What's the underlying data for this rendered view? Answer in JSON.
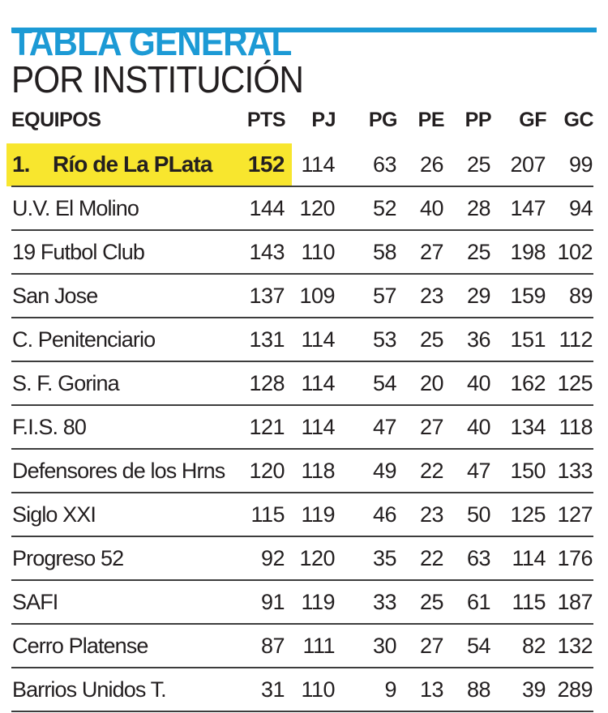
{
  "colors": {
    "accent_blue": "#1C9AD5",
    "highlight_yellow": "#F8E62E",
    "text_black": "#231F20",
    "separator_gray": "#3D3D3D"
  },
  "header": {
    "title_line1": "TABLA GENERAL",
    "title_line2": "POR INSTITUCIÓN"
  },
  "table": {
    "columns": [
      "EQUIPOS",
      "PTS",
      "PJ",
      "PG",
      "PE",
      "PP",
      "GF",
      "GC"
    ],
    "rows": [
      {
        "rank": "1.",
        "team": "Río de La PLata",
        "pts": "152",
        "pj": "114",
        "pg": "63",
        "pe": "26",
        "pp": "25",
        "gf": "207",
        "gc": "99",
        "highlighted": true
      },
      {
        "team": "U.V. El Molino",
        "pts": "144",
        "pj": "120",
        "pg": "52",
        "pe": "40",
        "pp": "28",
        "gf": "147",
        "gc": "94"
      },
      {
        "team": "19 Futbol Club",
        "pts": "143",
        "pj": "110",
        "pg": "58",
        "pe": "27",
        "pp": "25",
        "gf": "198",
        "gc": "102"
      },
      {
        "team": "San Jose",
        "pts": "137",
        "pj": "109",
        "pg": "57",
        "pe": "23",
        "pp": "29",
        "gf": "159",
        "gc": "89"
      },
      {
        "team": "C. Penitenciario",
        "pts": "131",
        "pj": "114",
        "pg": "53",
        "pe": "25",
        "pp": "36",
        "gf": "151",
        "gc": "112"
      },
      {
        "team": "S. F. Gorina",
        "pts": "128",
        "pj": "114",
        "pg": "54",
        "pe": "20",
        "pp": "40",
        "gf": "162",
        "gc": "125"
      },
      {
        "team": "F.I.S. 80",
        "pts": "121",
        "pj": "114",
        "pg": "47",
        "pe": "27",
        "pp": "40",
        "gf": "134",
        "gc": "118"
      },
      {
        "team": "Defensores de los Hrns",
        "pts": "120",
        "pj": "118",
        "pg": "49",
        "pe": "22",
        "pp": "47",
        "gf": "150",
        "gc": "133"
      },
      {
        "team": "Siglo XXI",
        "pts": "115",
        "pj": "119",
        "pg": "46",
        "pe": "23",
        "pp": "50",
        "gf": "125",
        "gc": "127"
      },
      {
        "team": "Progreso 52",
        "pts": "92",
        "pj": "120",
        "pg": "35",
        "pe": "22",
        "pp": "63",
        "gf": "114",
        "gc": "176"
      },
      {
        "team": "SAFI",
        "pts": "91",
        "pj": "119",
        "pg": "33",
        "pe": "25",
        "pp": "61",
        "gf": "115",
        "gc": "187"
      },
      {
        "team": "Cerro Platense",
        "pts": "87",
        "pj": "111",
        "pg": "30",
        "pe": "27",
        "pp": "54",
        "gf": "82",
        "gc": "132"
      },
      {
        "team": "Barrios Unidos T.",
        "pts": "31",
        "pj": "110",
        "pg": "9",
        "pe": "13",
        "pp": "88",
        "gf": "39",
        "gc": "289"
      }
    ]
  },
  "chart_data": {
    "type": "table",
    "title": "TABLA GENERAL POR INSTITUCIÓN",
    "columns": [
      "EQUIPOS",
      "PTS",
      "PJ",
      "PG",
      "PE",
      "PP",
      "GF",
      "GC"
    ],
    "rows": [
      [
        "Río de La PLata",
        152,
        114,
        63,
        26,
        25,
        207,
        99
      ],
      [
        "U.V. El Molino",
        144,
        120,
        52,
        40,
        28,
        147,
        94
      ],
      [
        "19 Futbol Club",
        143,
        110,
        58,
        27,
        25,
        198,
        102
      ],
      [
        "San Jose",
        137,
        109,
        57,
        23,
        29,
        159,
        89
      ],
      [
        "C. Penitenciario",
        131,
        114,
        53,
        25,
        36,
        151,
        112
      ],
      [
        "S. F. Gorina",
        128,
        114,
        54,
        20,
        40,
        162,
        125
      ],
      [
        "F.I.S. 80",
        121,
        114,
        47,
        27,
        40,
        134,
        118
      ],
      [
        "Defensores de los Hrns",
        120,
        118,
        49,
        22,
        47,
        150,
        133
      ],
      [
        "Siglo XXI",
        115,
        119,
        46,
        23,
        50,
        125,
        127
      ],
      [
        "Progreso 52",
        92,
        120,
        35,
        22,
        63,
        114,
        176
      ],
      [
        "SAFI",
        91,
        119,
        33,
        25,
        61,
        115,
        187
      ],
      [
        "Cerro Platense",
        87,
        111,
        30,
        27,
        54,
        82,
        132
      ],
      [
        "Barrios Unidos T.",
        31,
        110,
        9,
        13,
        88,
        39,
        289
      ]
    ],
    "highlighted_row": "1. Río de La PLata (152 pts)"
  }
}
